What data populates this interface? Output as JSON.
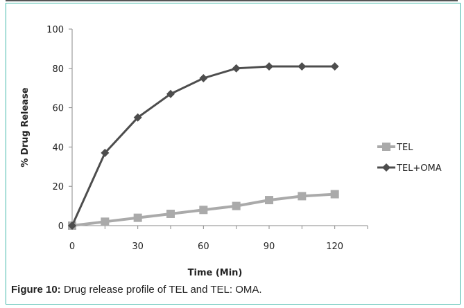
{
  "caption": {
    "label": "Figure 10:",
    "text": " Drug release profile of TEL and TEL: OMA."
  },
  "chart_data": {
    "type": "line",
    "xlabel": "Time (Min)",
    "ylabel": "% Drug Release",
    "xlim": [
      0,
      135
    ],
    "ylim": [
      0,
      100
    ],
    "x_ticks": [
      0,
      30,
      60,
      90,
      120
    ],
    "y_ticks": [
      0,
      20,
      40,
      60,
      80,
      100
    ],
    "grid": false,
    "legend_position": "right",
    "series": [
      {
        "name": "TEL",
        "color": "#aaaaaa",
        "marker": "square",
        "x": [
          0,
          15,
          30,
          45,
          60,
          75,
          90,
          105,
          120
        ],
        "y": [
          0,
          2,
          4,
          6,
          8,
          10,
          13,
          15,
          16
        ]
      },
      {
        "name": "TEL+OMA",
        "color": "#4d4d4d",
        "marker": "diamond",
        "x": [
          0,
          15,
          30,
          45,
          60,
          75,
          90,
          105,
          120
        ],
        "y": [
          0,
          37,
          55,
          67,
          75,
          80,
          81,
          81,
          81
        ]
      }
    ]
  }
}
